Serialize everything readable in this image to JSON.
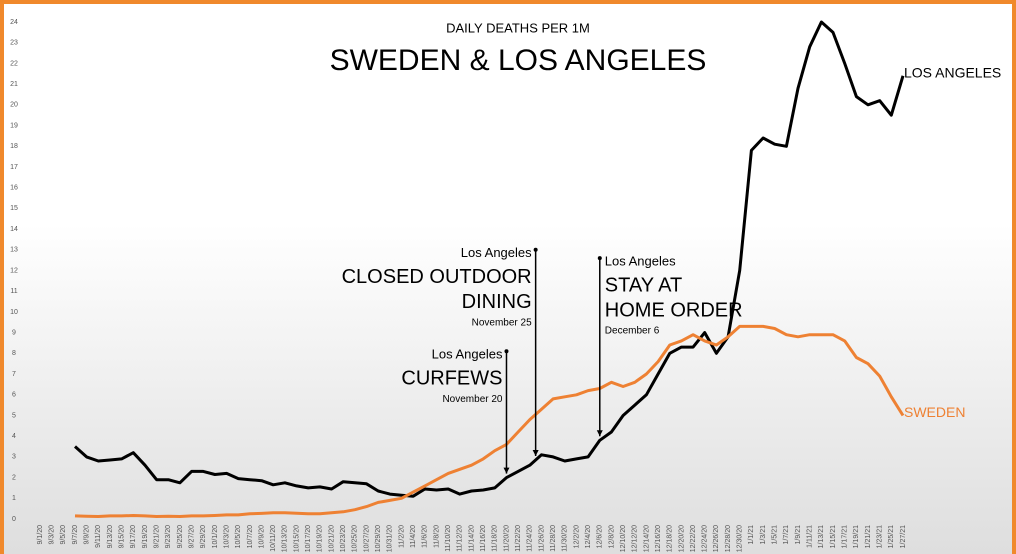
{
  "chart_data": {
    "type": "line",
    "subtitle": "DAILY DEATHS PER 1M",
    "title": "SWEDEN & LOS ANGELES",
    "categories": [
      "9/1/20",
      "9/3/20",
      "9/5/20",
      "9/7/20",
      "9/9/20",
      "9/11/20",
      "9/13/20",
      "9/15/20",
      "9/17/20",
      "9/19/20",
      "9/21/20",
      "9/23/20",
      "9/25/20",
      "9/27/20",
      "9/29/20",
      "10/1/20",
      "10/3/20",
      "10/5/20",
      "10/7/20",
      "10/9/20",
      "10/11/20",
      "10/13/20",
      "10/15/20",
      "10/17/20",
      "10/19/20",
      "10/21/20",
      "10/23/20",
      "10/25/20",
      "10/27/20",
      "10/29/20",
      "10/31/20",
      "11/2/20",
      "11/4/20",
      "11/6/20",
      "11/8/20",
      "11/10/20",
      "11/12/20",
      "11/14/20",
      "11/16/20",
      "11/18/20",
      "11/20/20",
      "11/22/20",
      "11/24/20",
      "11/26/20",
      "11/28/20",
      "11/30/20",
      "12/2/20",
      "12/4/20",
      "12/6/20",
      "12/8/20",
      "12/10/20",
      "12/12/20",
      "12/14/20",
      "12/16/20",
      "12/18/20",
      "12/20/20",
      "12/22/20",
      "12/24/20",
      "12/26/20",
      "12/28/20",
      "12/30/20",
      "1/1/21",
      "1/3/21",
      "1/5/21",
      "1/7/21",
      "1/9/21",
      "1/11/21",
      "1/13/21",
      "1/15/21",
      "1/17/21",
      "1/19/21",
      "1/21/21",
      "1/23/21",
      "1/25/21",
      "1/27/21"
    ],
    "series": [
      {
        "name": "LOS ANGELES",
        "color": "#000000",
        "values": [
          null,
          null,
          null,
          3.5,
          3.0,
          2.8,
          2.85,
          2.9,
          3.2,
          2.6,
          1.9,
          1.9,
          1.75,
          2.3,
          2.3,
          2.15,
          2.2,
          1.95,
          1.9,
          1.85,
          1.65,
          1.75,
          1.6,
          1.5,
          1.55,
          1.45,
          1.8,
          1.75,
          1.7,
          1.35,
          1.2,
          1.15,
          1.1,
          1.45,
          1.4,
          1.45,
          1.2,
          1.35,
          1.4,
          1.5,
          2.0,
          2.3,
          2.6,
          3.1,
          3.0,
          2.8,
          2.9,
          3.0,
          3.8,
          4.2,
          5.0,
          5.5,
          6.0,
          7.0,
          8.0,
          8.3,
          8.3,
          9.0,
          8.0,
          8.8,
          12.0,
          17.8,
          18.4,
          18.1,
          18.0,
          20.8,
          22.8,
          24.0,
          23.5,
          22.0,
          20.4,
          20.0,
          20.2,
          19.5,
          21.4
        ]
      },
      {
        "name": "SWEDEN",
        "color": "#ee8133",
        "values": [
          null,
          null,
          null,
          0.15,
          0.13,
          0.12,
          0.15,
          0.15,
          0.17,
          0.15,
          0.12,
          0.13,
          0.12,
          0.15,
          0.15,
          0.17,
          0.2,
          0.2,
          0.25,
          0.27,
          0.3,
          0.3,
          0.28,
          0.25,
          0.25,
          0.3,
          0.35,
          0.45,
          0.6,
          0.8,
          0.9,
          1.0,
          1.3,
          1.6,
          1.9,
          2.2,
          2.4,
          2.6,
          2.9,
          3.3,
          3.6,
          4.2,
          4.8,
          5.3,
          5.8,
          5.9,
          6.0,
          6.2,
          6.3,
          6.6,
          6.4,
          6.6,
          7.0,
          7.6,
          8.4,
          8.6,
          8.9,
          8.6,
          8.4,
          8.8,
          9.3,
          9.3,
          9.3,
          9.2,
          8.9,
          8.8,
          8.9,
          8.9,
          8.9,
          8.6,
          7.8,
          7.5,
          6.9,
          5.9,
          5.0
        ]
      }
    ],
    "ylim": [
      0,
      24
    ],
    "yticks": [
      0,
      1,
      2,
      3,
      4,
      5,
      6,
      7,
      8,
      9,
      10,
      11,
      12,
      13,
      14,
      15,
      16,
      17,
      18,
      19,
      20,
      21,
      22,
      23,
      24
    ],
    "grid": false,
    "annotations": [
      {
        "x": "11/20/20",
        "y": 8.1,
        "label": "Los Angeles",
        "lines": [
          "CURFEWS"
        ],
        "date": "November 20",
        "align": "right"
      },
      {
        "x": "11/25/20",
        "y": 13,
        "label": "Los Angeles",
        "lines": [
          "CLOSED OUTDOOR",
          "DINING"
        ],
        "date": "November 25",
        "align": "right"
      },
      {
        "x": "12/6/20",
        "y": 12.6,
        "label": "Los Angeles",
        "lines": [
          "STAY AT",
          "HOME ORDER"
        ],
        "date": "December 6",
        "align": "left"
      }
    ]
  }
}
